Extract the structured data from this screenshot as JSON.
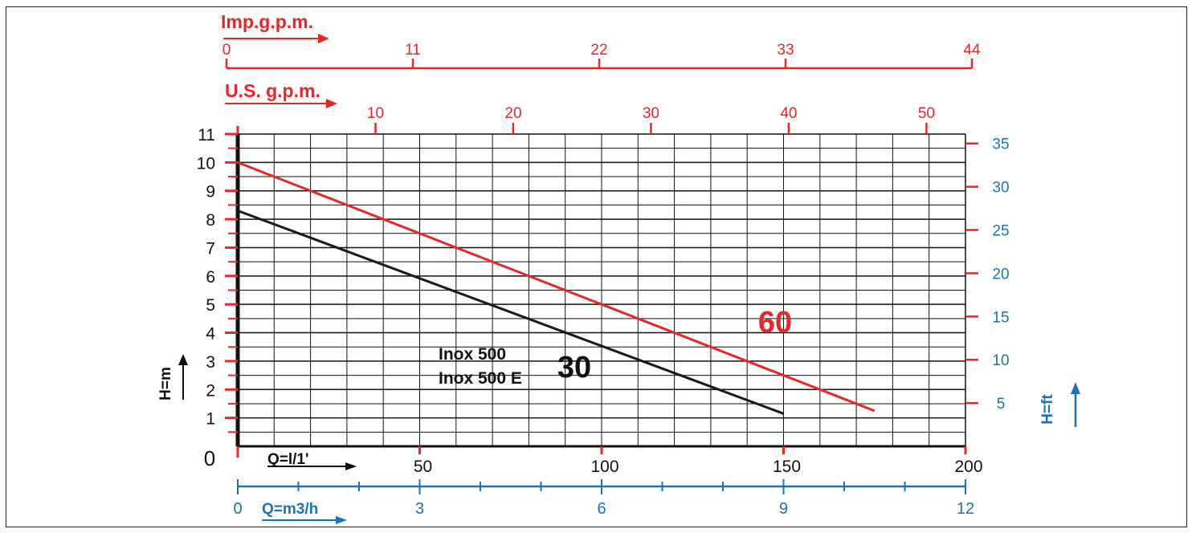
{
  "chart_data": {
    "type": "line",
    "x_unit_label": "Q=l/1'",
    "y_unit_label": "H=m",
    "y2_unit_label": "H=ft",
    "imp_unit_label": "Imp.g.p.m.",
    "us_unit_label": "U.S. g.p.m.",
    "m3h_unit_label": "Q=m3/h",
    "xlim": [
      0,
      200
    ],
    "ylim": [
      0,
      11
    ],
    "grid": true,
    "x_ticks": [
      "0",
      "50",
      "100",
      "150",
      "200"
    ],
    "y_ticks": [
      "1",
      "2",
      "3",
      "4",
      "5",
      "6",
      "7",
      "8",
      "9",
      "10",
      "11"
    ],
    "y2_ticks": [
      "5",
      "10",
      "15",
      "20",
      "25",
      "30",
      "35"
    ],
    "imp_ticks": [
      "0",
      "11",
      "22",
      "33",
      "44"
    ],
    "us_ticks": [
      "10",
      "20",
      "30",
      "40",
      "50"
    ],
    "m3h_ticks": [
      "0",
      "3",
      "6",
      "9",
      "12"
    ],
    "model_labels": [
      "Inox 500",
      "Inox 500 E"
    ],
    "series": [
      {
        "name": "60",
        "color": "#e8262a",
        "x": [
          0,
          175
        ],
        "y": [
          10.0,
          1.25
        ]
      },
      {
        "name": "30",
        "color": "#1a1a1a",
        "x": [
          0,
          150
        ],
        "y": [
          8.3,
          1.15
        ]
      }
    ]
  }
}
